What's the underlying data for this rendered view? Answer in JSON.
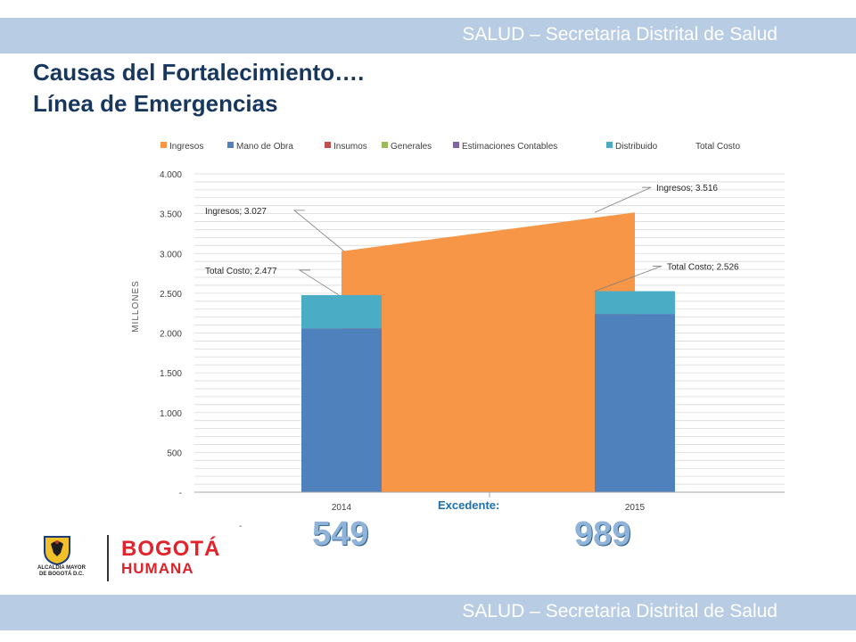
{
  "header": {
    "banner_text": "SALUD – Secretaria Distrital de Salud"
  },
  "footer": {
    "banner_text": "SALUD – Secretaria Distrital de Salud"
  },
  "title": {
    "line1": "Causas del Fortalecimiento….",
    "line2": "Línea de Emergencias"
  },
  "excedente": {
    "label": "Excedente:",
    "value_2014": "549",
    "value_2015": "989"
  },
  "logos": {
    "crest_text_line1": "ALCALDÍA MAYOR",
    "crest_text_line2": "DE BOGOTÁ D.C.",
    "bogota_text": "BOGOTÁ",
    "humana_text": "HUMANA"
  },
  "colors": {
    "banner": "#b8cce4",
    "title": "#17375e",
    "ingresos": "#f79646",
    "mano_de_obra": "#4f81bd",
    "insumos": "#c0504d",
    "generales": "#9bbb59",
    "estimaciones": "#8064a2",
    "distribuido": "#4bacc6"
  },
  "chart_data": {
    "type": "bar",
    "categories": [
      "2014",
      "2015"
    ],
    "ylabel": "MILLONES",
    "ylim": [
      0,
      4000
    ],
    "yticks": [
      0,
      500,
      1000,
      1500,
      2000,
      2500,
      3000,
      3500,
      4000
    ],
    "ytick_labels": [
      "-",
      "500",
      "1.000",
      "1.500",
      "2.000",
      "2.500",
      "3.000",
      "3.500",
      "4.000"
    ],
    "grid": true,
    "legend_position": "top",
    "legend": [
      "Ingresos",
      "Mano de Obra",
      "Insumos",
      "Generales",
      "Estimaciones Contables",
      "Distribuido",
      "Total Costo"
    ],
    "series": [
      {
        "name": "Ingresos",
        "type": "area",
        "values": [
          3027,
          3516
        ],
        "color": "#f79646"
      },
      {
        "name": "Mano de Obra",
        "type": "bar",
        "values": [
          2060,
          2240
        ],
        "color": "#4f81bd"
      },
      {
        "name": "Insumos",
        "type": "bar",
        "values": [
          0,
          0
        ],
        "color": "#c0504d"
      },
      {
        "name": "Generales",
        "type": "bar",
        "values": [
          0,
          0
        ],
        "color": "#9bbb59"
      },
      {
        "name": "Estimaciones Contables",
        "type": "bar",
        "values": [
          0,
          0
        ],
        "color": "#8064a2"
      },
      {
        "name": "Distribuido",
        "type": "bar",
        "values": [
          417,
          286
        ],
        "color": "#4bacc6"
      },
      {
        "name": "Total Costo",
        "type": "line",
        "values": [
          2477,
          2526
        ]
      }
    ],
    "annotations": [
      {
        "text": "Ingresos; 3.027",
        "category": "2014",
        "value": 3027
      },
      {
        "text": "Ingresos; 3.516",
        "category": "2015",
        "value": 3516
      },
      {
        "text": "Total Costo; 2.477",
        "category": "2014",
        "value": 2477
      },
      {
        "text": "Total Costo; 2.526",
        "category": "2015",
        "value": 2526
      }
    ]
  }
}
